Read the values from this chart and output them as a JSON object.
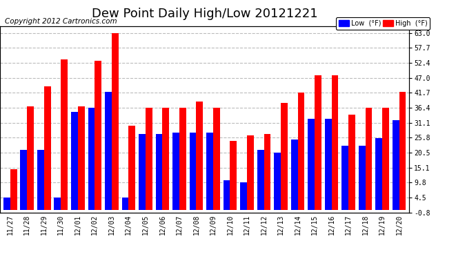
{
  "title": "Dew Point Daily High/Low 20121221",
  "copyright": "Copyright 2012 Cartronics.com",
  "categories": [
    "11/27",
    "11/28",
    "11/29",
    "11/30",
    "12/01",
    "12/02",
    "12/03",
    "12/04",
    "12/05",
    "12/06",
    "12/07",
    "12/08",
    "12/09",
    "12/10",
    "12/11",
    "12/12",
    "12/13",
    "12/14",
    "12/15",
    "12/16",
    "12/17",
    "12/18",
    "12/19",
    "12/20"
  ],
  "low_values": [
    4.5,
    21.5,
    21.5,
    4.5,
    35.0,
    36.4,
    42.0,
    4.5,
    27.0,
    27.0,
    27.5,
    27.5,
    27.5,
    10.5,
    9.8,
    21.5,
    20.5,
    25.0,
    32.5,
    32.5,
    23.0,
    23.0,
    25.5,
    32.0
  ],
  "high_values": [
    14.5,
    37.0,
    44.0,
    53.5,
    37.0,
    53.0,
    63.0,
    30.0,
    36.4,
    36.4,
    36.4,
    38.5,
    36.4,
    24.5,
    26.5,
    27.0,
    38.0,
    41.7,
    48.0,
    48.0,
    34.0,
    36.4,
    36.4,
    42.0
  ],
  "bar_width": 0.4,
  "low_color": "#0000ff",
  "high_color": "#ff0000",
  "background_color": "#ffffff",
  "grid_color": "#bbbbbb",
  "yticks": [
    -0.8,
    4.5,
    9.8,
    15.1,
    20.5,
    25.8,
    31.1,
    36.4,
    41.7,
    47.0,
    52.4,
    57.7,
    63.0
  ],
  "ylim": [
    -0.8,
    65.5
  ],
  "legend_low_label": "Low  (°F)",
  "legend_high_label": "High  (°F)",
  "title_fontsize": 13,
  "copyright_fontsize": 7.5,
  "tick_fontsize": 7,
  "right_ytick_fontsize": 7
}
